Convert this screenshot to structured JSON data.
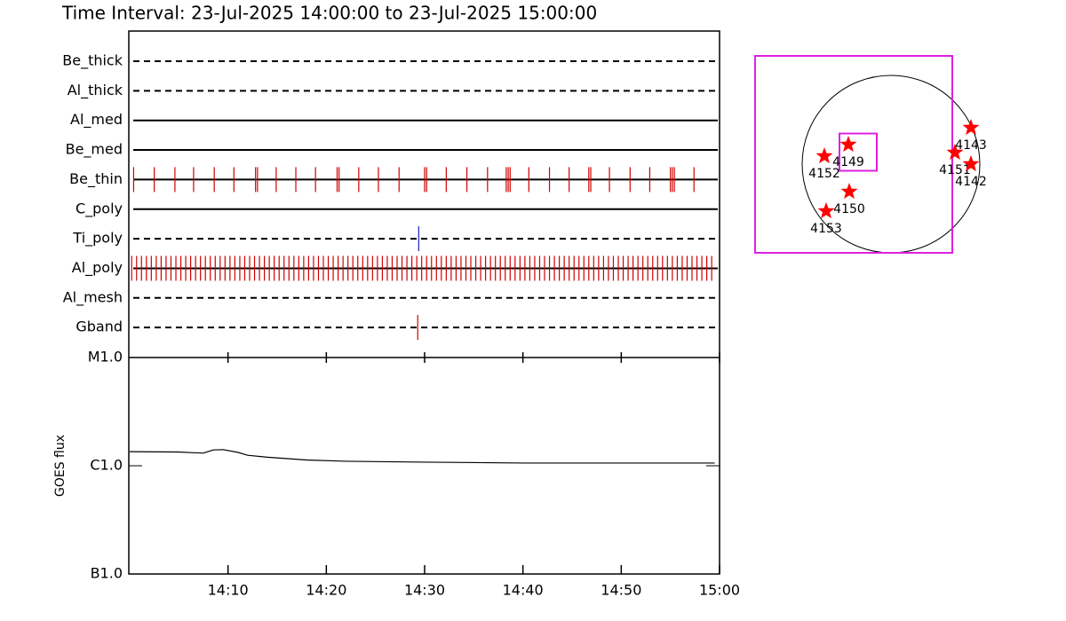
{
  "chart_data": [
    {
      "type": "timeline",
      "title": "Time Interval: 23-Jul-2025 14:00:00 to 23-Jul-2025 15:00:00",
      "xlim": [
        0,
        60
      ],
      "rows": [
        {
          "name": "Be_thick",
          "style": "dashed",
          "events": []
        },
        {
          "name": "Al_thick",
          "style": "dashed",
          "events": []
        },
        {
          "name": "Al_med",
          "style": "solid",
          "events": []
        },
        {
          "name": "Be_med",
          "style": "solid",
          "events": []
        },
        {
          "name": "Be_thin",
          "style": "solid",
          "color": "#d00000",
          "events": [
            0.4,
            2.5,
            4.6,
            6.5,
            8.6,
            10.6,
            12.8,
            13.0,
            14.9,
            16.9,
            18.9,
            21.1,
            21.3,
            23.3,
            25.3,
            27.4,
            30.0,
            30.2,
            32.2,
            34.3,
            36.4,
            38.3,
            38.5,
            38.7,
            40.6,
            42.7,
            44.7,
            46.7,
            46.9,
            48.8,
            50.9,
            52.9,
            55.0,
            55.2,
            55.4,
            57.4
          ]
        },
        {
          "name": "C_poly",
          "style": "solid",
          "events": []
        },
        {
          "name": "Ti_poly",
          "style": "dashed",
          "color": "#2020c0",
          "events": [
            29.4
          ]
        },
        {
          "name": "Al_poly",
          "style": "solid",
          "color": "#d00000",
          "events": [
            0.2,
            0.7,
            1.2,
            1.7,
            2.2,
            2.7,
            3.2,
            3.7,
            4.2,
            4.7,
            5.2,
            5.7,
            6.2,
            6.7,
            7.2,
            7.7,
            8.2,
            8.7,
            9.2,
            9.7,
            10.2,
            10.7,
            11.2,
            11.7,
            12.2,
            12.7,
            13.2,
            13.7,
            14.2,
            14.7,
            15.2,
            15.7,
            16.2,
            16.7,
            17.2,
            17.7,
            18.2,
            18.7,
            19.2,
            19.7,
            20.2,
            20.7,
            21.2,
            21.7,
            22.2,
            22.7,
            23.2,
            23.7,
            24.2,
            24.7,
            25.2,
            25.7,
            26.2,
            26.7,
            27.2,
            27.7,
            28.2,
            28.7,
            29.2,
            29.7,
            30.2,
            30.7,
            31.2,
            31.7,
            32.2,
            32.7,
            33.2,
            33.7,
            34.2,
            34.7,
            35.2,
            35.7,
            36.2,
            36.7,
            37.2,
            37.7,
            38.2,
            38.7,
            39.2,
            39.7,
            40.2,
            40.7,
            41.2,
            41.7,
            42.2,
            42.7,
            43.2,
            43.7,
            44.2,
            44.7,
            45.2,
            45.7,
            46.2,
            46.7,
            47.2,
            47.7,
            48.2,
            48.7,
            49.2,
            49.7,
            50.2,
            50.7,
            51.2,
            51.7,
            52.2,
            52.7,
            53.2,
            53.7,
            54.2,
            54.7,
            55.2,
            55.7,
            56.2,
            56.7,
            57.2,
            57.7,
            58.2,
            58.7,
            59.2
          ]
        },
        {
          "name": "Al_mesh",
          "style": "dashed",
          "events": []
        },
        {
          "name": "Gband",
          "style": "dashed",
          "color": "#d00000",
          "events": [
            29.3
          ]
        }
      ]
    },
    {
      "type": "line",
      "ylabel": "GOES flux",
      "log": true,
      "x": [
        0,
        5,
        6.5,
        7.5,
        8.5,
        9.5,
        11,
        12,
        14,
        18,
        22,
        30,
        40,
        50,
        59.5
      ],
      "values": [
        1.35e-06,
        1.34e-06,
        1.32e-06,
        1.31e-06,
        1.4e-06,
        1.41e-06,
        1.33e-06,
        1.25e-06,
        1.2e-06,
        1.13e-06,
        1.1e-06,
        1.08e-06,
        1.06e-06,
        1.06e-06,
        1.06e-06
      ],
      "color": "#000000",
      "xlim": [
        0,
        60
      ],
      "xticks": [
        {
          "value": 10,
          "label": "14:10"
        },
        {
          "value": 20,
          "label": "14:20"
        },
        {
          "value": 30,
          "label": "14:30"
        },
        {
          "value": 40,
          "label": "14:40"
        },
        {
          "value": 50,
          "label": "14:50"
        },
        {
          "value": 60,
          "label": "15:00"
        }
      ],
      "ylim": [
        1e-07,
        1e-05
      ],
      "yticks": [
        {
          "value": 1e-05,
          "label": "M1.0"
        },
        {
          "value": 1e-06,
          "label": "C1.0"
        },
        {
          "value": 1e-07,
          "label": "B1.0"
        }
      ]
    },
    {
      "type": "map",
      "labels": [
        "4143",
        "4151",
        "4142",
        "4149",
        "4152",
        "4150",
        "4153"
      ],
      "x": [
        0.9,
        0.72,
        0.9,
        -0.48,
        -0.75,
        -0.47,
        -0.73
      ],
      "y": [
        0.41,
        0.13,
        0.0,
        0.22,
        0.09,
        -0.31,
        -0.53
      ],
      "color": "#ff0000",
      "boxes": [
        {
          "x": -0.42,
          "y": 0.11,
          "size": 2.22,
          "color": "#e020e0"
        },
        {
          "x": -0.37,
          "y": 0.135,
          "size": 0.42,
          "color": "#e020e0"
        }
      ]
    }
  ]
}
